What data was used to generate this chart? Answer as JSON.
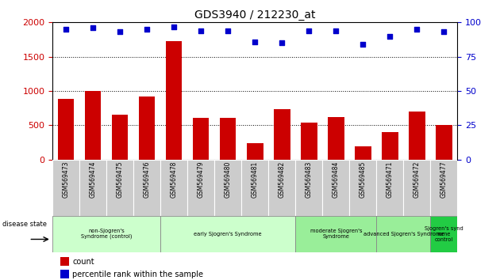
{
  "title": "GDS3940 / 212230_at",
  "samples": [
    "GSM569473",
    "GSM569474",
    "GSM569475",
    "GSM569476",
    "GSM569478",
    "GSM569479",
    "GSM569480",
    "GSM569481",
    "GSM569482",
    "GSM569483",
    "GSM569484",
    "GSM569485",
    "GSM569471",
    "GSM569472",
    "GSM569477"
  ],
  "counts": [
    880,
    1000,
    650,
    920,
    1730,
    610,
    605,
    240,
    730,
    540,
    620,
    190,
    400,
    700,
    510
  ],
  "percentiles": [
    95,
    96,
    93,
    95,
    97,
    94,
    94,
    86,
    85,
    94,
    94,
    84,
    90,
    95,
    93
  ],
  "bar_color": "#cc0000",
  "dot_color": "#0000cc",
  "ylim_left": [
    0,
    2000
  ],
  "ylim_right": [
    0,
    100
  ],
  "yticks_left": [
    0,
    500,
    1000,
    1500,
    2000
  ],
  "yticks_right": [
    0,
    25,
    50,
    75,
    100
  ],
  "groups": [
    {
      "label": "non-Sjogren's\nSyndrome (control)",
      "start": 0,
      "end": 4,
      "color": "#ccffcc"
    },
    {
      "label": "early Sjogren's Syndrome",
      "start": 4,
      "end": 9,
      "color": "#ccffcc"
    },
    {
      "label": "moderate Sjogren's\nSyndrome",
      "start": 9,
      "end": 12,
      "color": "#99ee99"
    },
    {
      "label": "advanced Sjogren's Syndrome",
      "start": 12,
      "end": 14,
      "color": "#99ee99"
    },
    {
      "label": "Sjogren's synd\nrome\ncontrol",
      "start": 14,
      "end": 15,
      "color": "#22cc44"
    }
  ],
  "tick_bg_color": "#cccccc",
  "legend_count_color": "#cc0000",
  "legend_perc_color": "#0000cc"
}
